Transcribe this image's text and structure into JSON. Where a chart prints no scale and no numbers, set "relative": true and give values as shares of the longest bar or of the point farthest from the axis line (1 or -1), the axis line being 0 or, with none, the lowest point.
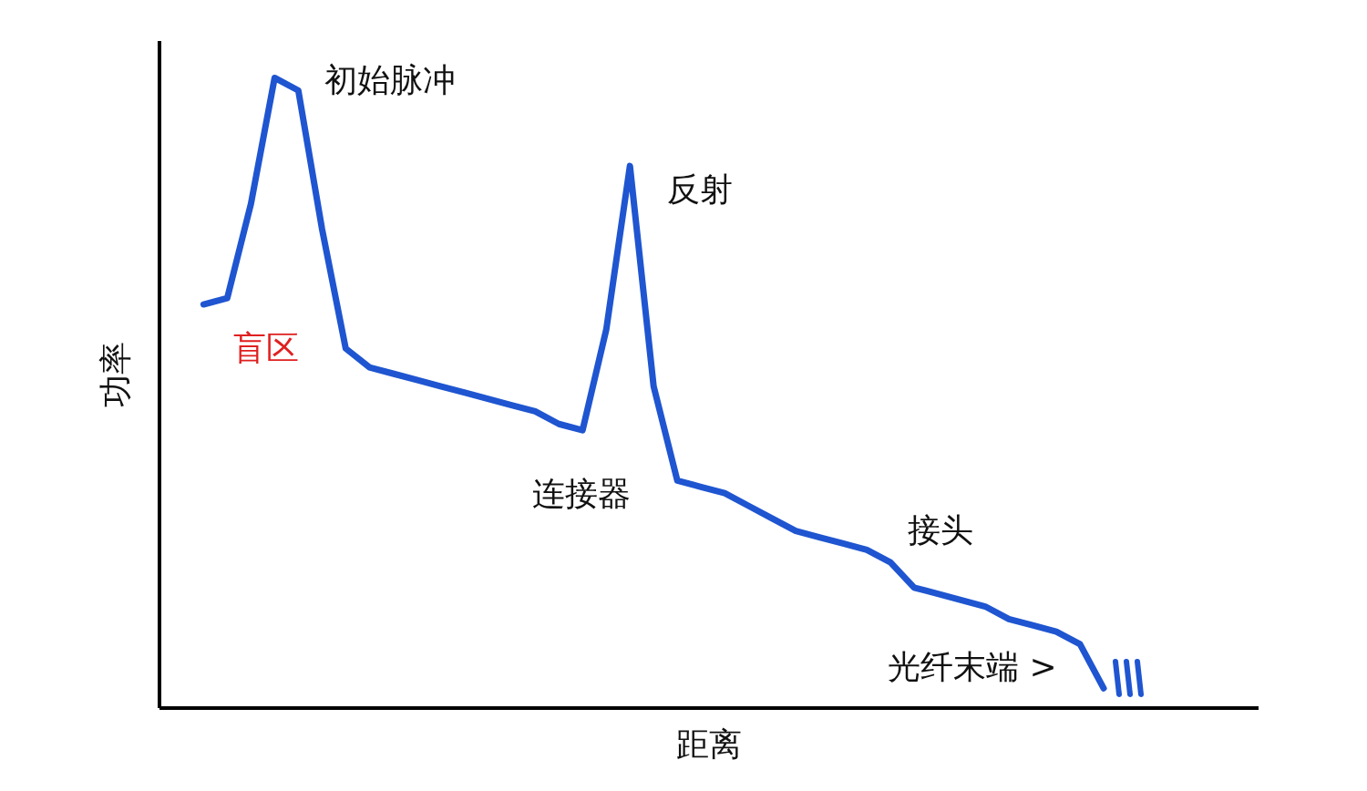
{
  "chart_data": {
    "type": "line",
    "relative": true,
    "xlabel": "距离",
    "ylabel": "功率",
    "color": "#1f55d0",
    "line_style": "solid",
    "categories": [
      null,
      null,
      null,
      null,
      null,
      null,
      null,
      null,
      null,
      null,
      null,
      null,
      null,
      null,
      null,
      null,
      null,
      null,
      null,
      null,
      null,
      null,
      null,
      null,
      null,
      null,
      null,
      null,
      null,
      null,
      null,
      null,
      null,
      null,
      null,
      null,
      null,
      null,
      null
    ],
    "values": [
      0.64,
      0.65,
      0.8,
      1,
      0.98,
      0.76,
      0.57,
      0.54,
      0.53,
      0.52,
      0.51,
      0.5,
      0.49,
      0.48,
      0.47,
      0.45,
      0.44,
      0.6,
      0.86,
      0.51,
      0.36,
      0.35,
      0.34,
      0.32,
      0.3,
      0.28,
      0.27,
      0.26,
      0.25,
      0.23,
      0.19,
      0.18,
      0.17,
      0.16,
      0.14,
      0.13,
      0.12,
      0.1,
      0.03
    ],
    "annotations": [
      "初始脉冲",
      "反射",
      "盲区",
      "连接器",
      "接头",
      "光纤末端 >"
    ]
  }
}
